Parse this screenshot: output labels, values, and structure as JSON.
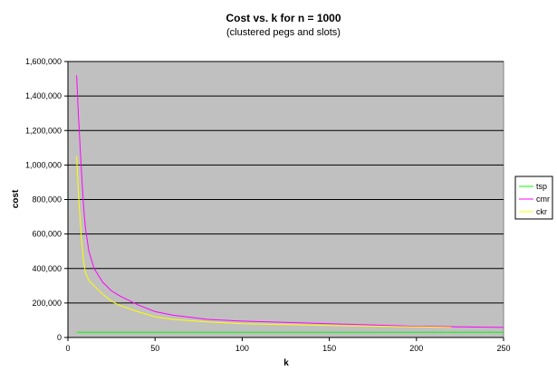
{
  "chart_data": {
    "type": "line",
    "title": "Cost vs. k for n = 1000",
    "subtitle": "(clustered pegs and slots)",
    "xlabel": "k",
    "ylabel": "cost",
    "xlim": [
      0,
      250
    ],
    "ylim": [
      0,
      1600000
    ],
    "xticks": [
      0,
      50,
      100,
      150,
      200,
      250
    ],
    "xtick_labels": [
      "0",
      "50",
      "100",
      "150",
      "200",
      "250"
    ],
    "yticks": [
      0,
      200000,
      400000,
      600000,
      800000,
      1000000,
      1200000,
      1400000,
      1600000
    ],
    "ytick_labels": [
      "0",
      "200,000",
      "400,000",
      "600,000",
      "800,000",
      "1,000,000",
      "1,200,000",
      "1,400,000",
      "1,600,000"
    ],
    "grid": "horizontal",
    "legend_position": "right",
    "plot_background": "#c0c0c0",
    "series": [
      {
        "name": "tsp",
        "color": "#00ff00",
        "x": [
          5,
          250
        ],
        "y": [
          30000,
          30000
        ]
      },
      {
        "name": "cmr",
        "color": "#ff00ff",
        "x": [
          5,
          6,
          7,
          8,
          9,
          10,
          12,
          15,
          20,
          25,
          30,
          40,
          50,
          60,
          80,
          100,
          150,
          200,
          250
        ],
        "y": [
          1520000,
          1300000,
          1100000,
          920000,
          760000,
          640000,
          500000,
          400000,
          320000,
          270000,
          240000,
          190000,
          150000,
          130000,
          105000,
          95000,
          80000,
          65000,
          58000
        ]
      },
      {
        "name": "ckr",
        "color": "#ffff00",
        "x": [
          5,
          6,
          7,
          8,
          9,
          10,
          12,
          15,
          20,
          25,
          30,
          40,
          50,
          60,
          80,
          100,
          150,
          200,
          220
        ],
        "y": [
          1050000,
          850000,
          680000,
          540000,
          440000,
          380000,
          330000,
          300000,
          250000,
          210000,
          185000,
          150000,
          120000,
          105000,
          90000,
          80000,
          70000,
          62000,
          58000
        ]
      }
    ]
  }
}
